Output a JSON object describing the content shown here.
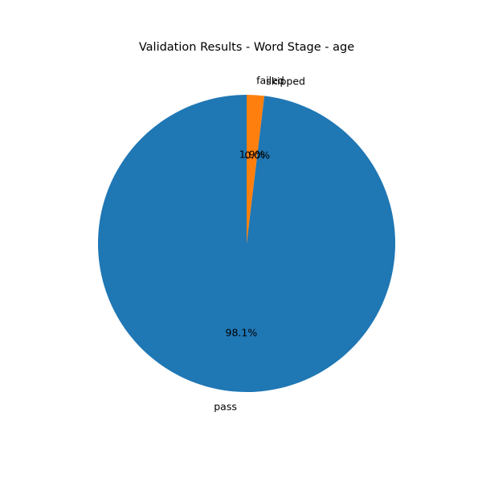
{
  "chart_data": {
    "type": "pie",
    "title": "Validation Results - Word Stage - age",
    "start_angle_deg": 90,
    "direction": "counterclockwise",
    "slices": [
      {
        "label": "pass",
        "value": 98.1,
        "pct_label": "98.1%",
        "color": "#1f77b4"
      },
      {
        "label": "skipped",
        "value": 0.0,
        "pct_label": "0.0%",
        "color": "#2ca02c"
      },
      {
        "label": "failed",
        "value": 1.9,
        "pct_label": "1.9%",
        "color": "#ff7f0e"
      }
    ]
  }
}
